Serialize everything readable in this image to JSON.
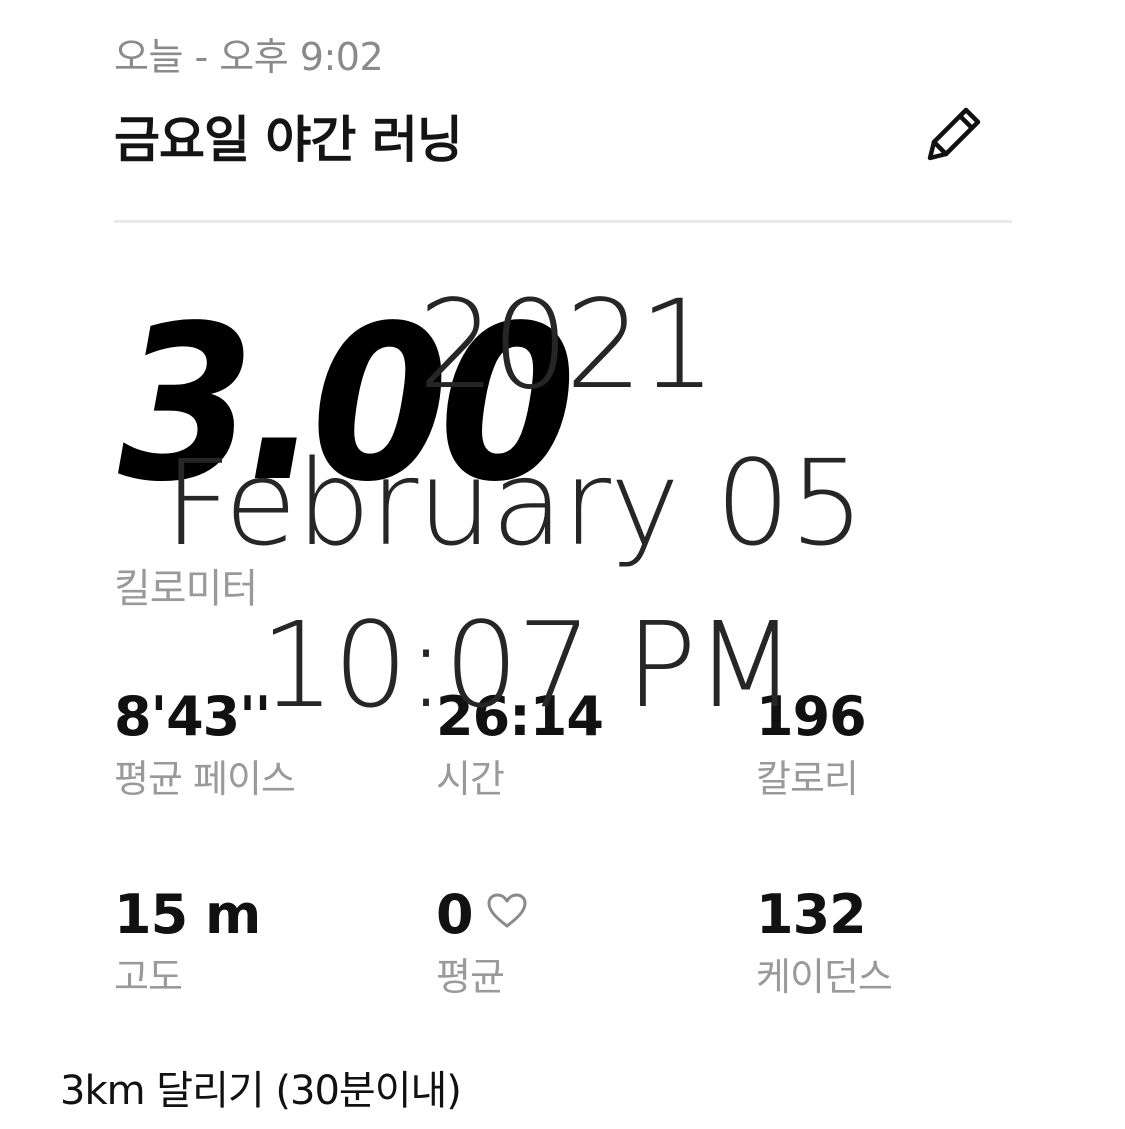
{
  "header": {
    "date_line": "오늘 - 오후 9:02",
    "title": "금요일 야간 러닝",
    "edit_icon": "pencil-icon"
  },
  "distance": {
    "value": "3.00",
    "unit": "킬로미터"
  },
  "stats": [
    {
      "value": "8'43''",
      "label": "평균 페이스"
    },
    {
      "value": "26:14",
      "label": "시간"
    },
    {
      "value": "196",
      "label": "칼로리"
    },
    {
      "value": "15 m",
      "label": "고도"
    },
    {
      "value": "0",
      "label": "평균",
      "icon": "heart-icon"
    },
    {
      "value": "132",
      "label": "케이던스"
    }
  ],
  "stamp": {
    "year": "2021",
    "date": "February 05",
    "time": "10:07 PM"
  },
  "caption": "3km 달리기 (30분이내)",
  "colors": {
    "text": "#111111",
    "muted": "#9a9a9a",
    "divider": "#e9e9e9",
    "stamp": "#262626"
  }
}
